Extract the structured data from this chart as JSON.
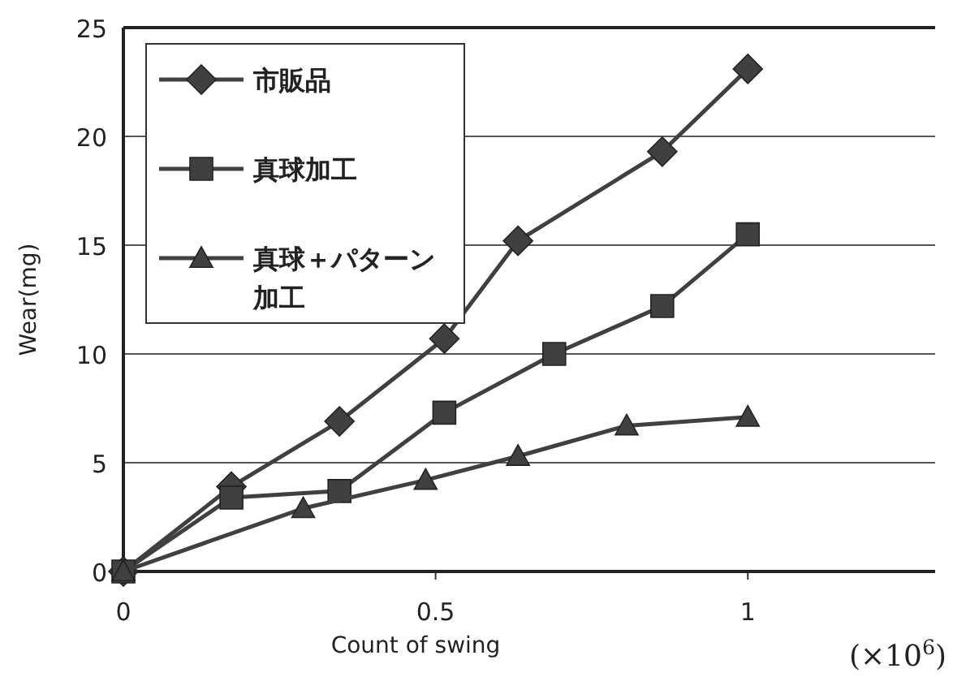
{
  "chart_data": {
    "type": "line",
    "xlabel": "Count of swing",
    "ylabel": "Wear(mg)",
    "xlim": [
      0,
      1.3
    ],
    "xticks": [
      0,
      0.5,
      1
    ],
    "ylim": [
      0,
      25
    ],
    "yticks": [
      0,
      5,
      10,
      15,
      20,
      25
    ],
    "grid": "y",
    "legend": "top left",
    "line_style": "solid",
    "annotations": [
      "(×10$^{6}$)"
    ],
    "series": [
      {
        "name": "市販品",
        "color": "#404040",
        "marker": "diamond",
        "x": [
          0,
          0.173,
          0.346,
          0.514,
          0.632,
          0.863,
          1.0
        ],
        "values": [
          0,
          3.9,
          6.9,
          10.7,
          15.2,
          19.3,
          23.1
        ]
      },
      {
        "name": "真球加工",
        "color": "#404040",
        "marker": "square",
        "x": [
          0,
          0.173,
          0.346,
          0.514,
          0.69,
          0.863,
          1.0
        ],
        "values": [
          0,
          3.4,
          3.7,
          7.3,
          10.0,
          12.2,
          15.5
        ]
      },
      {
        "name": "真球＋パターン加工",
        "color": "#404040",
        "marker": "triangle",
        "x": [
          0,
          0.288,
          0.484,
          0.632,
          0.806,
          1.0
        ],
        "values": [
          0,
          2.9,
          4.2,
          5.3,
          6.7,
          7.1
        ]
      }
    ]
  }
}
